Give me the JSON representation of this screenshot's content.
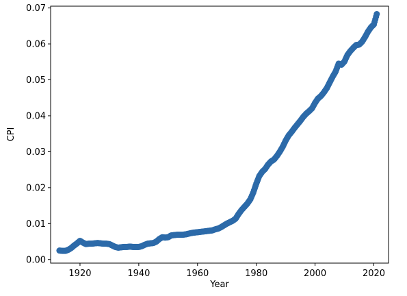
{
  "chart_data": {
    "type": "scatter",
    "title": "",
    "xlabel": "Year",
    "ylabel": "CPI",
    "xlim": [
      1910,
      2025
    ],
    "ylim": [
      -0.001,
      0.0705
    ],
    "xticks": [
      1920,
      1940,
      1960,
      1980,
      2000,
      2020
    ],
    "xtick_labels": [
      "1920",
      "1940",
      "1960",
      "1980",
      "2000",
      "2020"
    ],
    "yticks": [
      0.0,
      0.01,
      0.02,
      0.03,
      0.04,
      0.05,
      0.06,
      0.07
    ],
    "ytick_labels": [
      "0.00",
      "0.01",
      "0.02",
      "0.03",
      "0.04",
      "0.05",
      "0.06",
      "0.07"
    ],
    "grid": false,
    "legend": "none",
    "marker_color": "#2c6aa9",
    "series": [
      {
        "x": [
          1913,
          1914,
          1915,
          1916,
          1917,
          1918,
          1919,
          1920,
          1921,
          1922,
          1923,
          1924,
          1925,
          1926,
          1927,
          1928,
          1929,
          1930,
          1931,
          1932,
          1933,
          1934,
          1935,
          1936,
          1937,
          1938,
          1939,
          1940,
          1941,
          1942,
          1943,
          1944,
          1945,
          1946,
          1947,
          1948,
          1949,
          1950,
          1951,
          1952,
          1953,
          1954,
          1955,
          1956,
          1957,
          1958,
          1959,
          1960,
          1961,
          1962,
          1963,
          1964,
          1965,
          1966,
          1967,
          1968,
          1969,
          1970,
          1971,
          1972,
          1973,
          1974,
          1975,
          1976,
          1977,
          1978,
          1979,
          1980,
          1981,
          1982,
          1983,
          1984,
          1985,
          1986,
          1987,
          1988,
          1989,
          1990,
          1991,
          1992,
          1993,
          1994,
          1995,
          1996,
          1997,
          1998,
          1999,
          2000,
          2001,
          2002,
          2003,
          2004,
          2005,
          2006,
          2007,
          2008,
          2009,
          2010,
          2011,
          2012,
          2013,
          2014,
          2015,
          2016,
          2017,
          2018,
          2019,
          2020,
          2021
        ],
        "y": [
          0.0025,
          0.0024,
          0.0024,
          0.0027,
          0.0032,
          0.0039,
          0.0045,
          0.0052,
          0.0047,
          0.0043,
          0.0044,
          0.0044,
          0.0045,
          0.0046,
          0.0045,
          0.0044,
          0.0044,
          0.0043,
          0.0039,
          0.0035,
          0.0033,
          0.0034,
          0.0035,
          0.0035,
          0.0036,
          0.0035,
          0.0035,
          0.0035,
          0.0037,
          0.0041,
          0.0044,
          0.0045,
          0.0046,
          0.005,
          0.0057,
          0.0062,
          0.0061,
          0.0062,
          0.0067,
          0.0068,
          0.0069,
          0.0069,
          0.0069,
          0.007,
          0.0072,
          0.0074,
          0.0075,
          0.0076,
          0.0077,
          0.0078,
          0.0079,
          0.008,
          0.0081,
          0.0084,
          0.0086,
          0.009,
          0.0095,
          0.01,
          0.0104,
          0.0108,
          0.0114,
          0.0127,
          0.0138,
          0.0147,
          0.0156,
          0.0168,
          0.0187,
          0.0211,
          0.0232,
          0.0244,
          0.0252,
          0.0264,
          0.0273,
          0.0278,
          0.0288,
          0.03,
          0.0314,
          0.0331,
          0.0345,
          0.0355,
          0.0366,
          0.0376,
          0.0386,
          0.0397,
          0.0406,
          0.0413,
          0.0421,
          0.0436,
          0.0448,
          0.0455,
          0.0465,
          0.0477,
          0.0493,
          0.0509,
          0.0523,
          0.0545,
          0.0542,
          0.0551,
          0.0569,
          0.058,
          0.0589,
          0.0597,
          0.0598,
          0.0606,
          0.0619,
          0.0634,
          0.0646,
          0.0654,
          0.0683
        ]
      }
    ]
  }
}
